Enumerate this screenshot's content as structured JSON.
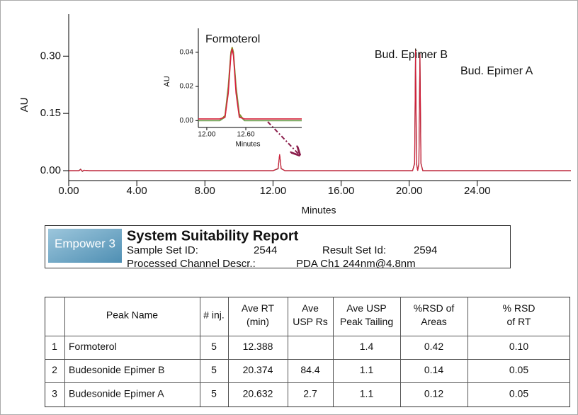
{
  "chart_data": [
    {
      "type": "line",
      "ylabel": "AU",
      "xlabel": "Minutes",
      "xlim": [
        0,
        29.5
      ],
      "ylim": [
        -0.026,
        0.41
      ],
      "xticks": [
        {
          "value": 0,
          "label": "0.00"
        },
        {
          "value": 4,
          "label": "4.00"
        },
        {
          "value": 8,
          "label": "8.00"
        },
        {
          "value": 12,
          "label": "12.00"
        },
        {
          "value": 16,
          "label": "16.00"
        },
        {
          "value": 20,
          "label": "20.00"
        },
        {
          "value": 24,
          "label": "24.00"
        }
      ],
      "yticks": [
        {
          "value": 0,
          "label": "0.00"
        },
        {
          "value": 0.15,
          "label": "0.15"
        },
        {
          "value": 0.3,
          "label": "0.30"
        }
      ],
      "annotations": [
        "Bud. Epimer B",
        "Bud. Epimer A"
      ],
      "x": [
        0,
        0.6,
        0.7,
        0.8,
        0.9,
        1.2,
        12.0,
        12.3,
        12.39,
        12.48,
        12.7,
        20.2,
        20.32,
        20.374,
        20.43,
        20.5,
        20.57,
        20.632,
        20.69,
        20.8,
        29.5
      ],
      "series": [
        {
          "color": "#3a2a1a",
          "values": [
            0,
            0,
            0.004,
            -0.002,
            0.001,
            0,
            0,
            0.005,
            0.042,
            0.005,
            0,
            0,
            0.02,
            0.32,
            0.02,
            0,
            0.02,
            0.31,
            0.02,
            0,
            0
          ]
        },
        {
          "color": "#d0203a",
          "values": [
            0,
            0,
            0.003,
            -0.001,
            0.001,
            0,
            0,
            0.006,
            0.043,
            0.006,
            0,
            0,
            0.018,
            0.315,
            0.018,
            0,
            0.018,
            0.305,
            0.018,
            0,
            0
          ]
        }
      ]
    },
    {
      "type": "line",
      "title": "Formoterol",
      "ylabel": "AU",
      "xlabel": "Minutes",
      "xlim": [
        11.87,
        13.46
      ],
      "ylim": [
        -0.004,
        0.054
      ],
      "xticks": [
        {
          "value": 12,
          "label": "12.00"
        },
        {
          "value": 12.6,
          "label": "12.60"
        }
      ],
      "yticks": [
        {
          "value": 0,
          "label": "0.00"
        },
        {
          "value": 0.02,
          "label": "0.02"
        },
        {
          "value": 0.04,
          "label": "0.04"
        }
      ],
      "x": [
        11.87,
        12.2,
        12.28,
        12.33,
        12.37,
        12.39,
        12.41,
        12.45,
        12.5,
        12.58,
        13.0,
        13.46
      ],
      "series": [
        {
          "color": "#8a8a20",
          "values": [
            0,
            0,
            0.003,
            0.02,
            0.04,
            0.043,
            0.04,
            0.02,
            0.004,
            0,
            0,
            0
          ]
        },
        {
          "color": "#6aa050",
          "values": [
            0,
            0,
            0.002,
            0.018,
            0.039,
            0.042,
            0.039,
            0.018,
            0.003,
            0,
            0,
            0
          ]
        },
        {
          "color": "#d8203c",
          "values": [
            0.001,
            0.001,
            0.002,
            0.016,
            0.038,
            0.042,
            0.038,
            0.016,
            0.002,
            0.001,
            0.001,
            0.001
          ]
        }
      ]
    }
  ],
  "report": {
    "logo": "Empower 3",
    "title": "System Suitability Report",
    "sample_label": "Sample Set ID:",
    "sample_value": "2544",
    "result_label": "Result Set Id:",
    "result_value": "2594",
    "channel_label": "Processed Channel Descr.:",
    "channel_value": "PDA Ch1 244nm@4.8nm"
  },
  "table": {
    "headers": [
      [
        "Peak Name"
      ],
      [
        "# inj."
      ],
      [
        "Ave RT",
        "(min)"
      ],
      [
        "Ave",
        "USP Rs"
      ],
      [
        "Ave USP",
        "Peak Tailing"
      ],
      [
        "%RSD of",
        "Areas"
      ],
      [
        "% RSD",
        "of RT"
      ]
    ],
    "rows": [
      [
        "1",
        "Formoterol",
        "5",
        "12.388",
        null,
        "1.4",
        "0.42",
        "0.10"
      ],
      [
        "2",
        "Budesonide Epimer B",
        "5",
        "20.374",
        "84.4",
        "1.1",
        "0.14",
        "0.05"
      ],
      [
        "3",
        "Budesonide Epimer A",
        "5",
        "20.632",
        "2.7",
        "1.1",
        "0.12",
        "0.05"
      ]
    ]
  }
}
